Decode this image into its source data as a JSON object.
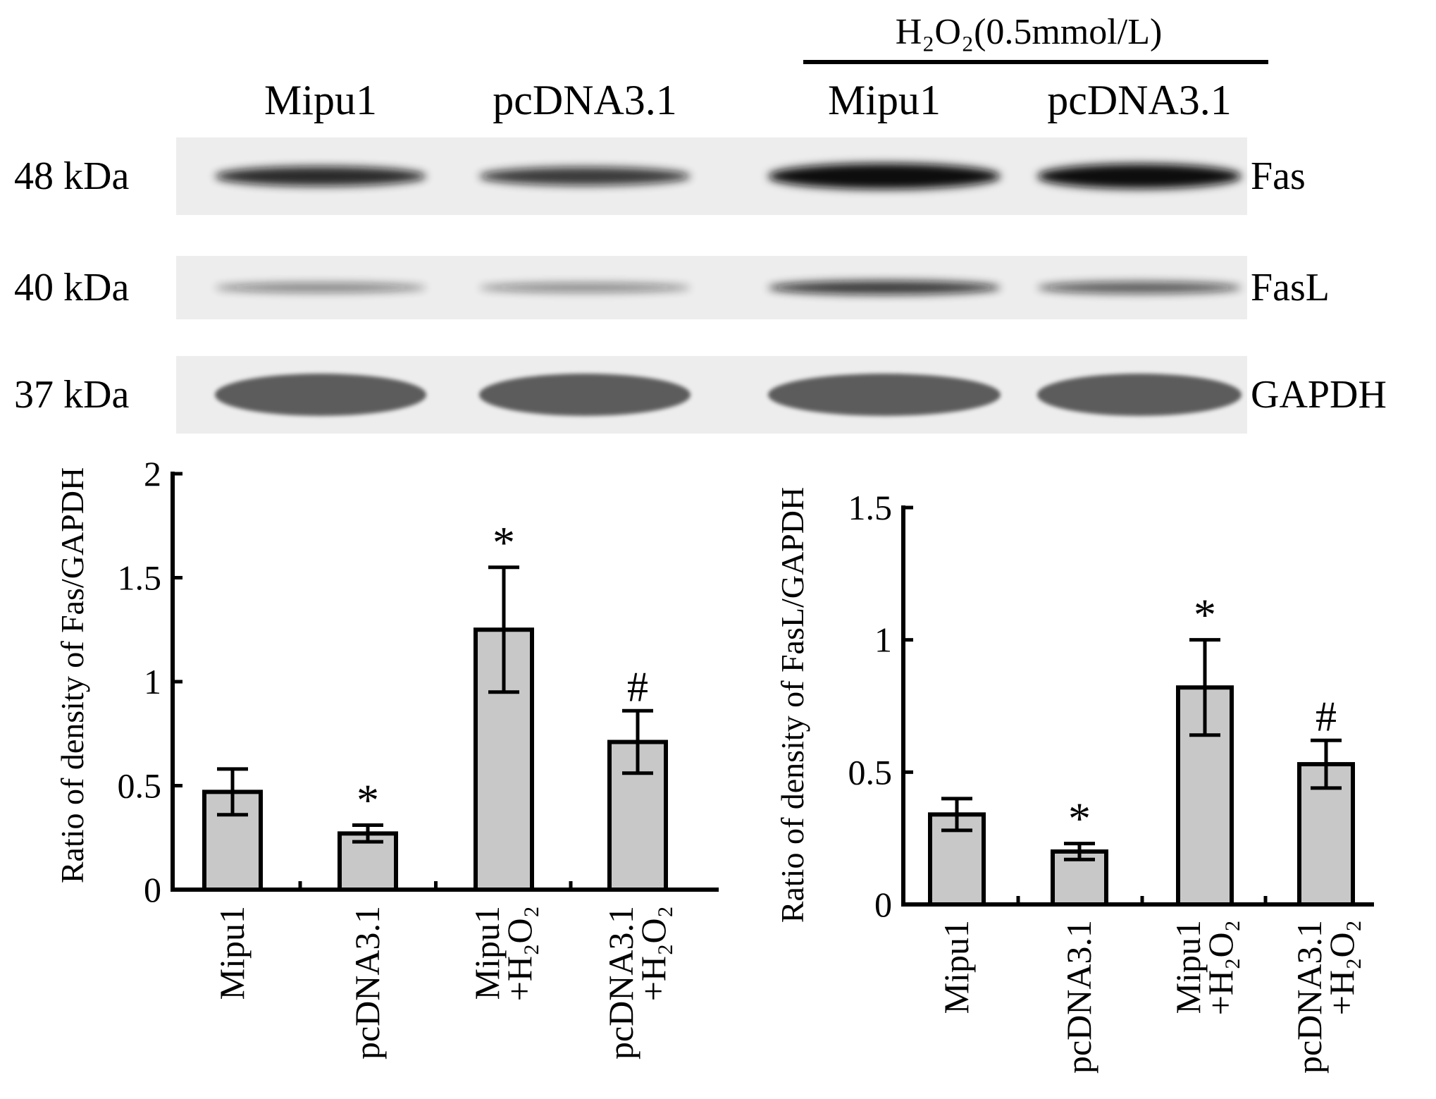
{
  "blot": {
    "treatment_label": "H₂O₂(0.5mmol/L)",
    "lane_labels": [
      "Mipu1",
      "pcDNA3.1",
      "Mipu1",
      "pcDNA3.1"
    ],
    "bands": [
      {
        "protein": "Fas",
        "size": "48 kDa",
        "intensities": [
          0.62,
          0.55,
          0.95,
          0.9
        ]
      },
      {
        "protein": "FasL",
        "size": "40 kDa",
        "intensities": [
          0.22,
          0.2,
          0.55,
          0.4
        ]
      },
      {
        "protein": "GAPDH",
        "size": "37 kDa",
        "intensities": [
          0.75,
          0.78,
          0.72,
          0.74
        ]
      }
    ],
    "colors": {
      "band": "#111111",
      "background": "#ededed"
    }
  },
  "chart_data": [
    {
      "type": "bar",
      "ylabel": "Ratio of density of Fas/GAPDH",
      "ylim": [
        0,
        2
      ],
      "yticks": [
        0,
        0.5,
        1,
        1.5,
        2
      ],
      "ytick_labels": [
        "0",
        "0.5",
        "1",
        "1.5",
        "2"
      ],
      "categories": [
        [
          "Mipu1"
        ],
        [
          "pcDNA3.1"
        ],
        [
          "Mipu1",
          "+H₂O₂"
        ],
        [
          "pcDNA3.1",
          "+H₂O₂"
        ]
      ],
      "values": [
        0.47,
        0.27,
        1.25,
        0.71
      ],
      "errors": [
        0.11,
        0.04,
        0.3,
        0.15
      ],
      "annotations": [
        "",
        "*",
        "*",
        "#"
      ],
      "bar_color": "#c8c8c8"
    },
    {
      "type": "bar",
      "ylabel": "Ratio of density of FasL/GAPDH",
      "ylim": [
        0,
        1.5
      ],
      "yticks": [
        0,
        0.5,
        1,
        1.5
      ],
      "ytick_labels": [
        "0",
        "0.5",
        "1",
        "1.5"
      ],
      "categories": [
        [
          "Mipu1"
        ],
        [
          "pcDNA3.1"
        ],
        [
          "Mipu1",
          "+H₂O₂"
        ],
        [
          "pcDNA3.1",
          "+H₂O₂"
        ]
      ],
      "values": [
        0.34,
        0.2,
        0.82,
        0.53
      ],
      "errors": [
        0.06,
        0.03,
        0.18,
        0.09
      ],
      "annotations": [
        "",
        "*",
        "*",
        "#"
      ],
      "bar_color": "#c8c8c8"
    }
  ]
}
